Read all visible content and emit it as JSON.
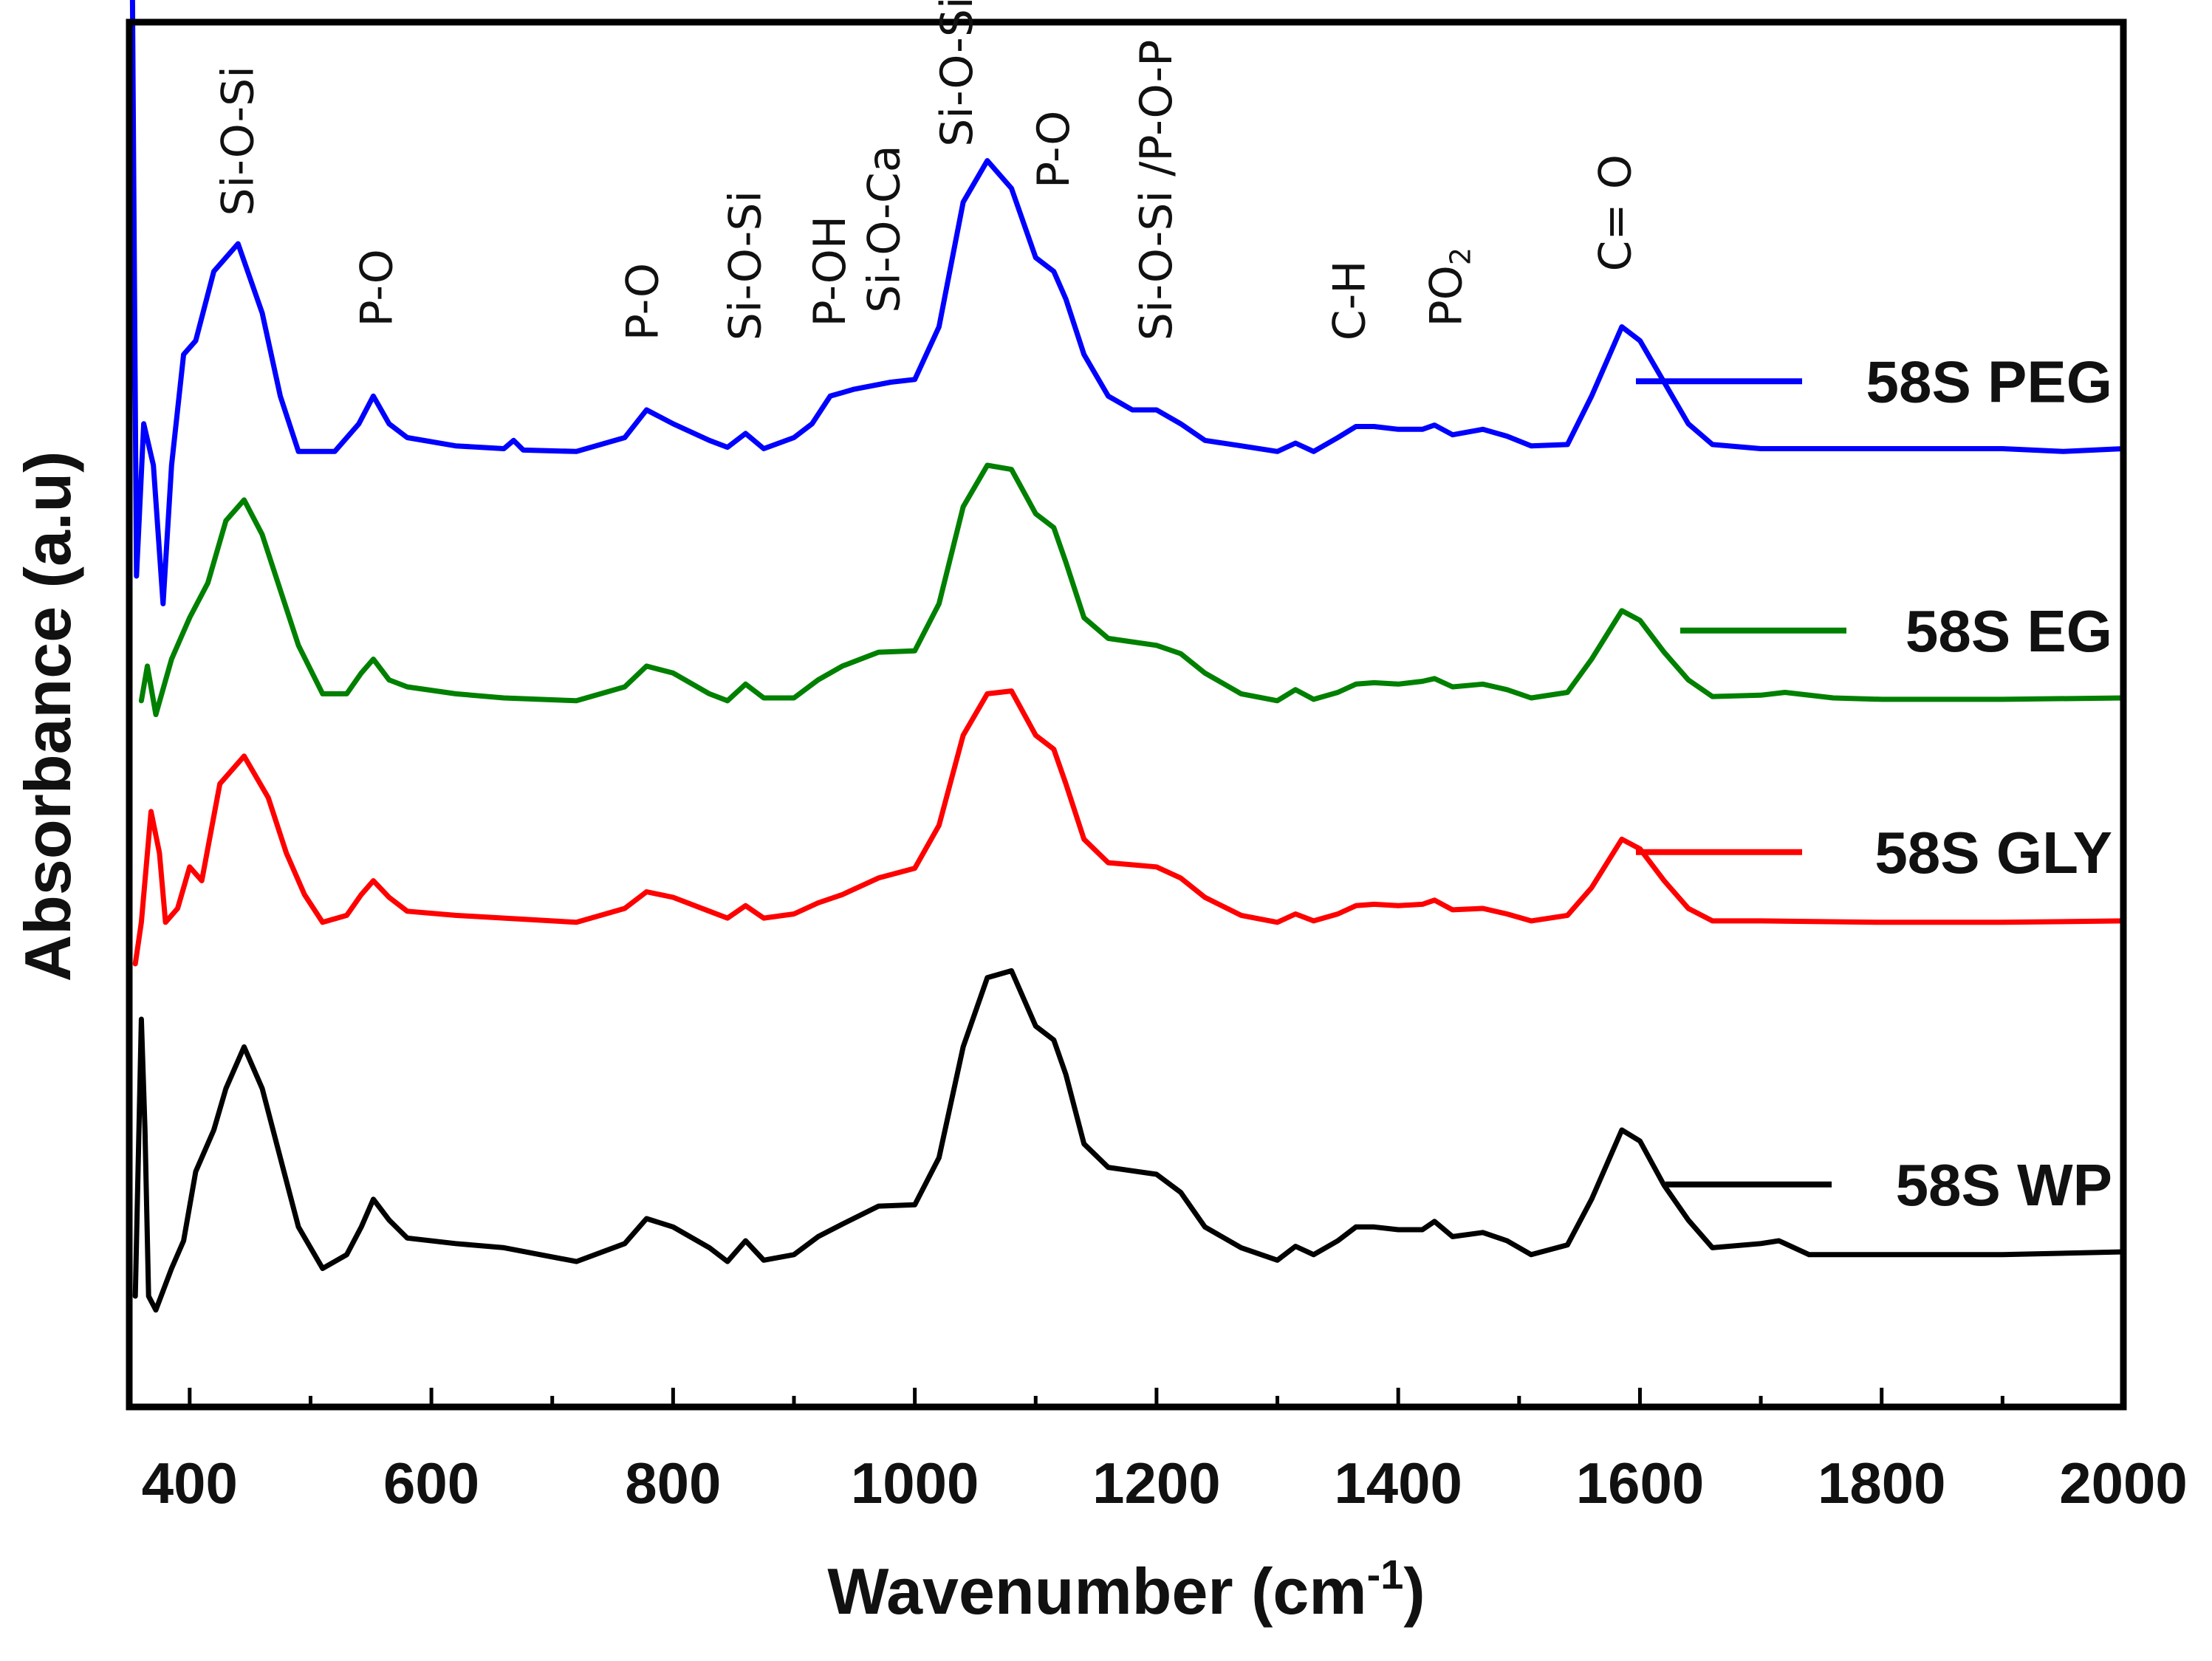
{
  "chart_data": {
    "type": "line",
    "title": "",
    "xlabel": "Wavenumber",
    "xlabel_unit_base": "cm",
    "xlabel_unit_exp": "-1",
    "ylabel": "Absorbance (a.u)",
    "xlim": [
      350,
      2000
    ],
    "ylim": [
      0,
      100
    ],
    "grid": false,
    "legend_placement": "right",
    "x_ticks": [
      400,
      600,
      800,
      1000,
      1200,
      1400,
      1600,
      1800,
      2000
    ],
    "x_tick_labels": [
      "400",
      "600",
      "800",
      "1000",
      "1200",
      "1400",
      "1600",
      "1800",
      "2000"
    ],
    "series": [
      {
        "name": "58S PEG",
        "color": "#0000ff",
        "baseline": 69,
        "points": [
          [
            352,
            110
          ],
          [
            356,
            60
          ],
          [
            362,
            71
          ],
          [
            370,
            68
          ],
          [
            378,
            58
          ],
          [
            385,
            68
          ],
          [
            395,
            76
          ],
          [
            405,
            77
          ],
          [
            420,
            82
          ],
          [
            440,
            84
          ],
          [
            460,
            79
          ],
          [
            475,
            73
          ],
          [
            490,
            69
          ],
          [
            520,
            69
          ],
          [
            540,
            71
          ],
          [
            552,
            73
          ],
          [
            565,
            71
          ],
          [
            580,
            70
          ],
          [
            620,
            69.4
          ],
          [
            660,
            69.2
          ],
          [
            668,
            69.8
          ],
          [
            676,
            69.1
          ],
          [
            720,
            69
          ],
          [
            760,
            70
          ],
          [
            778,
            72
          ],
          [
            800,
            71
          ],
          [
            830,
            69.8
          ],
          [
            845,
            69.3
          ],
          [
            860,
            70.3
          ],
          [
            875,
            69.2
          ],
          [
            900,
            70
          ],
          [
            915,
            71
          ],
          [
            930,
            73
          ],
          [
            950,
            73.5
          ],
          [
            980,
            74
          ],
          [
            1000,
            74.2
          ],
          [
            1020,
            78
          ],
          [
            1040,
            87
          ],
          [
            1060,
            90
          ],
          [
            1080,
            88
          ],
          [
            1100,
            83
          ],
          [
            1115,
            82
          ],
          [
            1125,
            80
          ],
          [
            1140,
            76
          ],
          [
            1160,
            73
          ],
          [
            1180,
            72
          ],
          [
            1200,
            72
          ],
          [
            1220,
            71
          ],
          [
            1240,
            69.8
          ],
          [
            1270,
            69.4
          ],
          [
            1300,
            69
          ],
          [
            1315,
            69.6
          ],
          [
            1330,
            69
          ],
          [
            1350,
            70
          ],
          [
            1365,
            70.8
          ],
          [
            1380,
            70.8
          ],
          [
            1400,
            70.6
          ],
          [
            1420,
            70.6
          ],
          [
            1430,
            70.9
          ],
          [
            1445,
            70.2
          ],
          [
            1470,
            70.6
          ],
          [
            1490,
            70.1
          ],
          [
            1510,
            69.4
          ],
          [
            1540,
            69.5
          ],
          [
            1560,
            73
          ],
          [
            1585,
            78
          ],
          [
            1600,
            77
          ],
          [
            1620,
            74
          ],
          [
            1640,
            71
          ],
          [
            1660,
            69.5
          ],
          [
            1700,
            69.2
          ],
          [
            1800,
            69.2
          ],
          [
            1900,
            69.2
          ],
          [
            1950,
            69
          ],
          [
            2000,
            69.2
          ]
        ]
      },
      {
        "name": "58S EG",
        "color": "#008000",
        "baseline": 51,
        "points": [
          [
            360,
            51
          ],
          [
            365,
            53.5
          ],
          [
            372,
            50
          ],
          [
            385,
            54
          ],
          [
            400,
            57
          ],
          [
            415,
            59.5
          ],
          [
            430,
            64
          ],
          [
            445,
            65.5
          ],
          [
            460,
            63
          ],
          [
            475,
            59
          ],
          [
            490,
            55
          ],
          [
            510,
            51.5
          ],
          [
            530,
            51.5
          ],
          [
            542,
            53
          ],
          [
            552,
            54
          ],
          [
            565,
            52.5
          ],
          [
            580,
            52
          ],
          [
            620,
            51.5
          ],
          [
            660,
            51.2
          ],
          [
            720,
            51
          ],
          [
            760,
            52
          ],
          [
            778,
            53.5
          ],
          [
            800,
            53
          ],
          [
            830,
            51.5
          ],
          [
            845,
            51
          ],
          [
            860,
            52.2
          ],
          [
            875,
            51.2
          ],
          [
            900,
            51.2
          ],
          [
            920,
            52.5
          ],
          [
            940,
            53.5
          ],
          [
            970,
            54.5
          ],
          [
            1000,
            54.6
          ],
          [
            1020,
            58
          ],
          [
            1040,
            65
          ],
          [
            1060,
            68
          ],
          [
            1080,
            67.7
          ],
          [
            1100,
            64.5
          ],
          [
            1115,
            63.5
          ],
          [
            1125,
            61
          ],
          [
            1140,
            57
          ],
          [
            1160,
            55.5
          ],
          [
            1200,
            55
          ],
          [
            1220,
            54.4
          ],
          [
            1240,
            53
          ],
          [
            1270,
            51.5
          ],
          [
            1300,
            51
          ],
          [
            1315,
            51.8
          ],
          [
            1330,
            51.1
          ],
          [
            1350,
            51.6
          ],
          [
            1365,
            52.2
          ],
          [
            1380,
            52.3
          ],
          [
            1400,
            52.2
          ],
          [
            1420,
            52.4
          ],
          [
            1430,
            52.6
          ],
          [
            1445,
            52
          ],
          [
            1470,
            52.2
          ],
          [
            1490,
            51.8
          ],
          [
            1510,
            51.2
          ],
          [
            1540,
            51.6
          ],
          [
            1560,
            54
          ],
          [
            1585,
            57.5
          ],
          [
            1600,
            56.8
          ],
          [
            1620,
            54.5
          ],
          [
            1640,
            52.5
          ],
          [
            1660,
            51.3
          ],
          [
            1700,
            51.4
          ],
          [
            1720,
            51.6
          ],
          [
            1760,
            51.2
          ],
          [
            1800,
            51.1
          ],
          [
            1900,
            51.1
          ],
          [
            2000,
            51.2
          ]
        ]
      },
      {
        "name": "58S GLY",
        "color": "#ff0000",
        "baseline": 35,
        "points": [
          [
            355,
            32
          ],
          [
            360,
            35
          ],
          [
            368,
            43
          ],
          [
            375,
            40
          ],
          [
            380,
            35
          ],
          [
            390,
            36
          ],
          [
            400,
            39
          ],
          [
            410,
            38
          ],
          [
            425,
            45
          ],
          [
            445,
            47
          ],
          [
            465,
            44
          ],
          [
            480,
            40
          ],
          [
            495,
            37
          ],
          [
            510,
            35
          ],
          [
            530,
            35.5
          ],
          [
            542,
            37
          ],
          [
            552,
            38
          ],
          [
            565,
            36.8
          ],
          [
            580,
            35.8
          ],
          [
            620,
            35.5
          ],
          [
            660,
            35.3
          ],
          [
            720,
            35
          ],
          [
            760,
            36
          ],
          [
            778,
            37.2
          ],
          [
            800,
            36.8
          ],
          [
            830,
            35.8
          ],
          [
            845,
            35.3
          ],
          [
            860,
            36.2
          ],
          [
            875,
            35.3
          ],
          [
            900,
            35.6
          ],
          [
            920,
            36.4
          ],
          [
            940,
            37
          ],
          [
            970,
            38.2
          ],
          [
            1000,
            38.9
          ],
          [
            1020,
            42
          ],
          [
            1040,
            48.5
          ],
          [
            1060,
            51.5
          ],
          [
            1080,
            51.7
          ],
          [
            1100,
            48.5
          ],
          [
            1115,
            47.5
          ],
          [
            1125,
            45
          ],
          [
            1140,
            41
          ],
          [
            1160,
            39.3
          ],
          [
            1200,
            39
          ],
          [
            1220,
            38.2
          ],
          [
            1240,
            36.8
          ],
          [
            1270,
            35.5
          ],
          [
            1300,
            35
          ],
          [
            1315,
            35.6
          ],
          [
            1330,
            35.1
          ],
          [
            1350,
            35.6
          ],
          [
            1365,
            36.2
          ],
          [
            1380,
            36.3
          ],
          [
            1400,
            36.2
          ],
          [
            1420,
            36.3
          ],
          [
            1430,
            36.6
          ],
          [
            1445,
            35.9
          ],
          [
            1470,
            36
          ],
          [
            1490,
            35.6
          ],
          [
            1510,
            35.1
          ],
          [
            1540,
            35.5
          ],
          [
            1560,
            37.5
          ],
          [
            1585,
            41
          ],
          [
            1600,
            40.3
          ],
          [
            1620,
            38
          ],
          [
            1640,
            36
          ],
          [
            1660,
            35.1
          ],
          [
            1700,
            35.1
          ],
          [
            1800,
            35
          ],
          [
            1900,
            35
          ],
          [
            2000,
            35.1
          ]
        ]
      },
      {
        "name": "58S WP",
        "color": "#000000",
        "baseline": 11,
        "points": [
          [
            355,
            8
          ],
          [
            360,
            28
          ],
          [
            363,
            20
          ],
          [
            366,
            8
          ],
          [
            372,
            7
          ],
          [
            385,
            10
          ],
          [
            395,
            12
          ],
          [
            405,
            17
          ],
          [
            420,
            20
          ],
          [
            430,
            23
          ],
          [
            445,
            26
          ],
          [
            460,
            23
          ],
          [
            475,
            18
          ],
          [
            490,
            13
          ],
          [
            510,
            10
          ],
          [
            530,
            11
          ],
          [
            542,
            13
          ],
          [
            552,
            15
          ],
          [
            565,
            13.5
          ],
          [
            580,
            12.2
          ],
          [
            620,
            11.8
          ],
          [
            660,
            11.5
          ],
          [
            720,
            10.5
          ],
          [
            760,
            11.8
          ],
          [
            778,
            13.6
          ],
          [
            800,
            13
          ],
          [
            830,
            11.5
          ],
          [
            845,
            10.5
          ],
          [
            860,
            12
          ],
          [
            875,
            10.6
          ],
          [
            900,
            11
          ],
          [
            920,
            12.3
          ],
          [
            940,
            13.2
          ],
          [
            970,
            14.5
          ],
          [
            1000,
            14.6
          ],
          [
            1020,
            18
          ],
          [
            1040,
            26
          ],
          [
            1060,
            31
          ],
          [
            1080,
            31.5
          ],
          [
            1100,
            27.5
          ],
          [
            1115,
            26.5
          ],
          [
            1125,
            24
          ],
          [
            1140,
            19
          ],
          [
            1160,
            17.3
          ],
          [
            1200,
            16.8
          ],
          [
            1220,
            15.5
          ],
          [
            1240,
            13
          ],
          [
            1270,
            11.5
          ],
          [
            1300,
            10.6
          ],
          [
            1315,
            11.6
          ],
          [
            1330,
            11
          ],
          [
            1350,
            12
          ],
          [
            1365,
            13
          ],
          [
            1380,
            13
          ],
          [
            1400,
            12.8
          ],
          [
            1420,
            12.8
          ],
          [
            1430,
            13.4
          ],
          [
            1445,
            12.3
          ],
          [
            1470,
            12.6
          ],
          [
            1490,
            12
          ],
          [
            1510,
            11
          ],
          [
            1540,
            11.7
          ],
          [
            1560,
            15
          ],
          [
            1585,
            20
          ],
          [
            1600,
            19.2
          ],
          [
            1620,
            16
          ],
          [
            1640,
            13.5
          ],
          [
            1660,
            11.5
          ],
          [
            1700,
            11.8
          ],
          [
            1715,
            12
          ],
          [
            1740,
            11
          ],
          [
            1800,
            11
          ],
          [
            1900,
            11
          ],
          [
            2000,
            11.2
          ]
        ]
      }
    ],
    "annotations": [
      {
        "label": "Si-O-Si",
        "x": 440,
        "y": 86
      },
      {
        "label": "P-O",
        "x": 555,
        "y": 78
      },
      {
        "label": "P-O",
        "x": 775,
        "y": 77
      },
      {
        "label": "Si-O-Si",
        "x": 860,
        "y": 77
      },
      {
        "label": "P-OH",
        "x": 930,
        "y": 78
      },
      {
        "label": "Si-O-Ca",
        "x": 975,
        "y": 79
      },
      {
        "label": "Si-O-Si",
        "x": 1035,
        "y": 91
      },
      {
        "label": "P-O",
        "x": 1115,
        "y": 88
      },
      {
        "label": "Si-O-Si /P-O-P",
        "x": 1200,
        "y": 77
      },
      {
        "label": "C-H",
        "x": 1360,
        "y": 77
      },
      {
        "label": "PO",
        "subscript": "2",
        "x": 1440,
        "y": 78
      },
      {
        "label": "C= O",
        "x": 1580,
        "y": 82
      }
    ]
  }
}
